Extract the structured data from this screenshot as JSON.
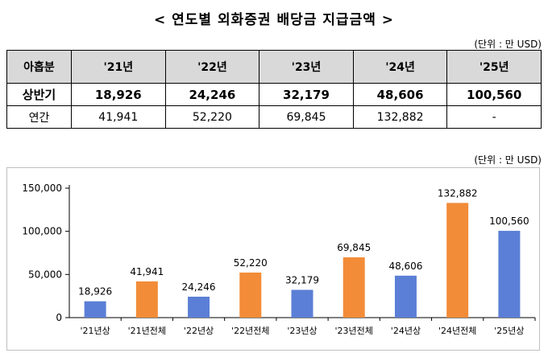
{
  "title": "< 연도별 외화증권 배당금 지급금액 >",
  "unit_label": "(단위 : 만 USD)",
  "table": {
    "headers": [
      "아홉분",
      "'21년",
      "'22년",
      "'23년",
      "'24년",
      "'25년"
    ],
    "rows": [
      {
        "label": "상반기",
        "cells": [
          "18,926",
          "24,246",
          "32,179",
          "48,606",
          "100,560"
        ]
      },
      {
        "label": "연간",
        "cells": [
          "41,941",
          "52,220",
          "69,845",
          "132,882",
          "-"
        ]
      }
    ]
  },
  "colors": {
    "half": "#4f81bd",
    "half_fill": "#5b7fd6",
    "annual": "#f28c38",
    "axis": "#000000",
    "frame": "#bfbfbf",
    "header_bg": "#d9d9d9"
  },
  "chart_data": {
    "type": "bar",
    "categories": [
      "'21년상",
      "'21년전체",
      "'22년상",
      "'22년전체",
      "'23년상",
      "'23년전체",
      "'24년상",
      "'24년전체",
      "'25년상"
    ],
    "values": [
      18926,
      41941,
      24246,
      52220,
      32179,
      69845,
      48606,
      132882,
      100560
    ],
    "data_labels": [
      "18,926",
      "41,941",
      "24,246",
      "52,220",
      "32,179",
      "69,845",
      "48,606",
      "132,882",
      "100,560"
    ],
    "bar_kind": [
      "half",
      "annual",
      "half",
      "annual",
      "half",
      "annual",
      "half",
      "annual",
      "half"
    ],
    "y_ticks": [
      "0",
      "50,000",
      "100,000",
      "150,000"
    ],
    "y_tick_values": [
      0,
      50000,
      100000,
      150000
    ],
    "ylim": [
      0,
      150000
    ],
    "grid": false,
    "legend": "none"
  }
}
